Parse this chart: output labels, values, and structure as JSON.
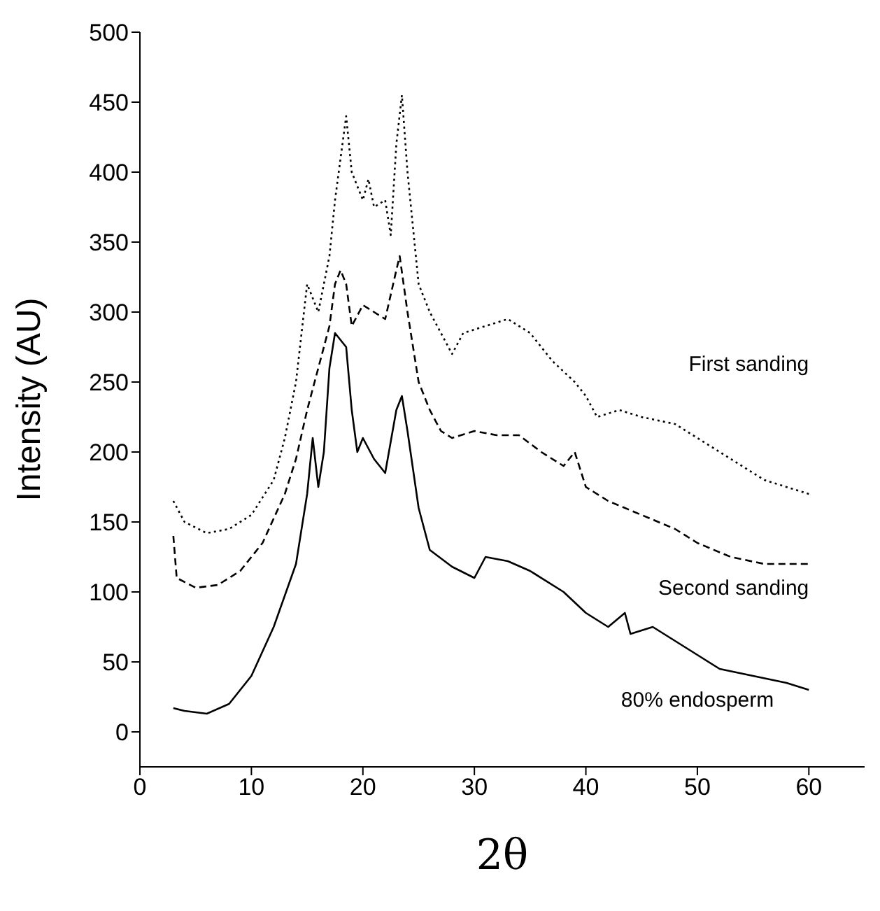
{
  "chart_data": {
    "type": "line",
    "xlabel": "2θ",
    "ylabel": "Intensity (AU)",
    "xlim": [
      0,
      65
    ],
    "ylim": [
      -25,
      500
    ],
    "xticks": [
      0,
      10,
      20,
      30,
      40,
      50,
      60
    ],
    "yticks": [
      0,
      50,
      100,
      150,
      200,
      250,
      300,
      350,
      400,
      450,
      500
    ],
    "marker": "none",
    "series": [
      {
        "name": "First sanding",
        "color": "#000000",
        "line_style": "dotted",
        "x": [
          3,
          4,
          6,
          8,
          10,
          12,
          13,
          14,
          15,
          16,
          17,
          17.5,
          18,
          18.5,
          19,
          20,
          20.5,
          21,
          22,
          22.5,
          23,
          23.5,
          24,
          24.5,
          25,
          26,
          27,
          28,
          29,
          31,
          33,
          35,
          37,
          39,
          40,
          41,
          43,
          45,
          48,
          50,
          53,
          56,
          60
        ],
        "values": [
          165,
          150,
          142,
          145,
          155,
          180,
          210,
          250,
          320,
          300,
          340,
          380,
          410,
          440,
          400,
          380,
          395,
          375,
          380,
          355,
          420,
          455,
          400,
          360,
          320,
          300,
          285,
          270,
          285,
          290,
          295,
          285,
          265,
          250,
          240,
          225,
          230,
          225,
          220,
          210,
          195,
          180,
          170
        ]
      },
      {
        "name": "Second sanding",
        "color": "#000000",
        "line_style": "dashed",
        "x": [
          3,
          3.3,
          5,
          7,
          9,
          11,
          13,
          14,
          15,
          16,
          17,
          17.5,
          18,
          18.5,
          19,
          20,
          21,
          22,
          23,
          23.3,
          24,
          25,
          26,
          27,
          28,
          30,
          32,
          34,
          36,
          38,
          39,
          40,
          42,
          45,
          48,
          50,
          53,
          56,
          58,
          60
        ],
        "values": [
          140,
          110,
          103,
          105,
          115,
          135,
          170,
          195,
          230,
          260,
          290,
          320,
          330,
          320,
          290,
          305,
          300,
          295,
          330,
          340,
          300,
          250,
          230,
          215,
          210,
          215,
          212,
          212,
          200,
          190,
          200,
          175,
          165,
          155,
          145,
          135,
          125,
          120,
          120,
          120
        ]
      },
      {
        "name": "80% endosperm",
        "color": "#000000",
        "line_style": "solid",
        "x": [
          3,
          4,
          6,
          8,
          10,
          12,
          14,
          15,
          15.5,
          16,
          16.5,
          17,
          17.5,
          18,
          18.5,
          19,
          19.5,
          20,
          21,
          22,
          23,
          23.5,
          24,
          25,
          26,
          28,
          30,
          31,
          33,
          35,
          38,
          40,
          42,
          43.5,
          44,
          46,
          48,
          50,
          52,
          55,
          58,
          60
        ],
        "values": [
          17,
          15,
          13,
          20,
          40,
          75,
          120,
          170,
          210,
          175,
          200,
          260,
          285,
          280,
          275,
          230,
          200,
          210,
          195,
          185,
          230,
          240,
          215,
          160,
          130,
          118,
          110,
          125,
          122,
          115,
          100,
          85,
          75,
          85,
          70,
          75,
          65,
          55,
          45,
          40,
          35,
          30
        ]
      }
    ]
  }
}
